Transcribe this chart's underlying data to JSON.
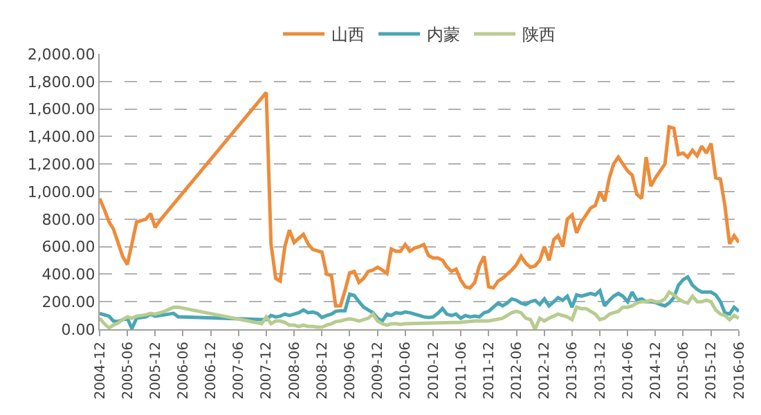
{
  "chart_data": {
    "type": "line",
    "grid": "y",
    "legend": "top",
    "marker": "none",
    "line_style": "solid",
    "xlim": [
      "2004-12",
      "2016-06"
    ],
    "xticks": [
      "2004-12",
      "2005-06",
      "2005-12",
      "2006-06",
      "2006-12",
      "2007-06",
      "2007-12",
      "2008-06",
      "2008-12",
      "2009-06",
      "2009-12",
      "2010-06",
      "2010-12",
      "2011-06",
      "2011-12",
      "2012-06",
      "2012-12",
      "2013-06",
      "2013-12",
      "2014-06",
      "2014-12",
      "2015-06",
      "2015-12",
      "2016-06"
    ],
    "ylim": [
      0,
      2000
    ],
    "yticks": [
      {
        "value": 0,
        "label": "0.00"
      },
      {
        "value": 200,
        "label": "200.00"
      },
      {
        "value": 400,
        "label": "400.00"
      },
      {
        "value": 600,
        "label": "600.00"
      },
      {
        "value": 800,
        "label": "800.00"
      },
      {
        "value": 1000,
        "label": "1,000.00"
      },
      {
        "value": 1200,
        "label": "1,200.00"
      },
      {
        "value": 1400,
        "label": "1,400.00"
      },
      {
        "value": 1600,
        "label": "1,600.00"
      },
      {
        "value": 1800,
        "label": "1,800.00"
      },
      {
        "value": 2000,
        "label": "2,000.00"
      }
    ],
    "series": [
      {
        "name": "山西",
        "color": "#ed8c3b",
        "x": [
          "2004-12",
          "2005-01",
          "2005-02",
          "2005-03",
          "2005-04",
          "2005-05",
          "2005-06",
          "2005-07",
          "2005-08",
          "2005-09",
          "2005-10",
          "2005-11",
          "2005-12",
          "2006-01",
          "2007-12",
          "2008-01",
          "2008-02",
          "2008-03",
          "2008-04",
          "2008-05",
          "2008-06",
          "2008-07",
          "2008-08",
          "2008-09",
          "2008-10",
          "2008-11",
          "2008-12",
          "2009-01",
          "2009-02",
          "2009-03",
          "2009-04",
          "2009-05",
          "2009-06",
          "2009-07",
          "2009-08",
          "2009-09",
          "2009-10",
          "2009-11",
          "2009-12",
          "2010-01",
          "2010-02",
          "2010-03",
          "2010-04",
          "2010-05",
          "2010-06",
          "2010-07",
          "2010-08",
          "2010-09",
          "2010-10",
          "2010-11",
          "2010-12",
          "2011-01",
          "2011-02",
          "2011-03",
          "2011-04",
          "2011-05",
          "2011-06",
          "2011-07",
          "2011-08",
          "2011-09",
          "2011-10",
          "2011-11",
          "2011-12",
          "2012-01",
          "2012-02",
          "2012-03",
          "2012-04",
          "2012-05",
          "2012-06",
          "2012-07",
          "2012-08",
          "2012-09",
          "2012-10",
          "2012-11",
          "2012-12",
          "2013-01",
          "2013-02",
          "2013-03",
          "2013-04",
          "2013-05",
          "2013-06",
          "2013-07",
          "2013-08",
          "2013-09",
          "2013-10",
          "2013-11",
          "2013-12",
          "2014-01",
          "2014-02",
          "2014-03",
          "2014-04",
          "2014-05",
          "2014-06",
          "2014-07",
          "2014-08",
          "2014-09",
          "2014-10",
          "2014-11",
          "2014-12",
          "2015-01",
          "2015-02",
          "2015-03",
          "2015-04",
          "2015-05",
          "2015-06",
          "2015-07",
          "2015-08",
          "2015-09",
          "2015-10",
          "2015-11",
          "2015-12",
          "2016-01",
          "2016-02",
          "2016-03",
          "2016-04",
          "2016-05",
          "2016-06"
        ],
        "values": [
          950,
          870,
          780,
          730,
          630,
          530,
          470,
          620,
          780,
          790,
          800,
          840,
          740,
          790,
          1720,
          620,
          370,
          350,
          600,
          720,
          630,
          660,
          690,
          620,
          580,
          570,
          560,
          400,
          390,
          170,
          170,
          280,
          410,
          420,
          340,
          370,
          420,
          430,
          450,
          430,
          405,
          583,
          567,
          567,
          615,
          567,
          590,
          600,
          615,
          535,
          518,
          518,
          502,
          454,
          421,
          437,
          356,
          308,
          300,
          340,
          460,
          530,
          308,
          300,
          350,
          370,
          400,
          430,
          470,
          530,
          480,
          450,
          460,
          500,
          600,
          500,
          650,
          680,
          600,
          800,
          830,
          700,
          780,
          830,
          880,
          900,
          1000,
          930,
          1100,
          1200,
          1250,
          1200,
          1150,
          1120,
          980,
          950,
          1250,
          1040,
          1100,
          1150,
          1200,
          1470,
          1460,
          1270,
          1280,
          1250,
          1300,
          1260,
          1330,
          1280,
          1350,
          1100,
          1090,
          900,
          620,
          680,
          630
        ]
      },
      {
        "name": "内蒙",
        "color": "#4aa6b5",
        "x": [
          "2004-12",
          "2005-01",
          "2005-02",
          "2005-03",
          "2005-04",
          "2005-05",
          "2005-06",
          "2005-07",
          "2005-08",
          "2005-09",
          "2005-10",
          "2005-11",
          "2005-12",
          "2006-03",
          "2006-04",
          "2006-05",
          "2007-11",
          "2007-12",
          "2008-01",
          "2008-02",
          "2008-03",
          "2008-04",
          "2008-05",
          "2008-06",
          "2008-07",
          "2008-08",
          "2008-09",
          "2008-10",
          "2008-11",
          "2008-12",
          "2009-01",
          "2009-02",
          "2009-03",
          "2009-04",
          "2009-05",
          "2009-06",
          "2009-07",
          "2009-08",
          "2009-09",
          "2009-10",
          "2009-11",
          "2009-12",
          "2010-01",
          "2010-02",
          "2010-03",
          "2010-04",
          "2010-05",
          "2010-06",
          "2010-07",
          "2010-08",
          "2010-09",
          "2010-10",
          "2010-11",
          "2010-12",
          "2011-01",
          "2011-02",
          "2011-03",
          "2011-04",
          "2011-05",
          "2011-06",
          "2011-07",
          "2011-08",
          "2011-09",
          "2011-10",
          "2011-11",
          "2011-12",
          "2012-01",
          "2012-02",
          "2012-03",
          "2012-04",
          "2012-05",
          "2012-06",
          "2012-07",
          "2012-08",
          "2012-09",
          "2012-10",
          "2012-11",
          "2012-12",
          "2013-01",
          "2013-02",
          "2013-03",
          "2013-04",
          "2013-05",
          "2013-06",
          "2013-07",
          "2013-08",
          "2013-09",
          "2013-10",
          "2013-11",
          "2013-12",
          "2014-01",
          "2014-02",
          "2014-03",
          "2014-04",
          "2014-05",
          "2014-06",
          "2014-07",
          "2014-08",
          "2014-09",
          "2014-10",
          "2014-11",
          "2014-12",
          "2015-01",
          "2015-02",
          "2015-03",
          "2015-04",
          "2015-05",
          "2015-06",
          "2015-07",
          "2015-08",
          "2015-09",
          "2015-10",
          "2015-11",
          "2015-12",
          "2016-01",
          "2016-02",
          "2016-03",
          "2016-04",
          "2016-05",
          "2016-06"
        ],
        "values": [
          115,
          105,
          95,
          60,
          55,
          70,
          80,
          5,
          80,
          85,
          90,
          110,
          95,
          110,
          115,
          90,
          70,
          70,
          100,
          90,
          95,
          110,
          100,
          110,
          120,
          140,
          120,
          125,
          115,
          85,
          100,
          110,
          130,
          135,
          135,
          255,
          245,
          200,
          160,
          140,
          120,
          80,
          60,
          110,
          100,
          120,
          115,
          125,
          120,
          110,
          100,
          90,
          85,
          90,
          115,
          150,
          110,
          100,
          110,
          80,
          100,
          90,
          95,
          90,
          120,
          130,
          160,
          190,
          170,
          190,
          220,
          210,
          190,
          180,
          200,
          210,
          180,
          220,
          170,
          200,
          230,
          210,
          240,
          160,
          250,
          240,
          250,
          260,
          250,
          280,
          170,
          210,
          240,
          260,
          240,
          200,
          270,
          210,
          220,
          200,
          200,
          195,
          180,
          170,
          190,
          230,
          320,
          360,
          380,
          320,
          290,
          270,
          270,
          270,
          250,
          200,
          120,
          110,
          160,
          130
        ]
      },
      {
        "name": "陕西",
        "color": "#b8cc8f",
        "x": [
          "2004-12",
          "2005-01",
          "2005-02",
          "2005-03",
          "2005-04",
          "2005-05",
          "2005-06",
          "2005-07",
          "2005-08",
          "2005-09",
          "2005-10",
          "2005-11",
          "2005-12",
          "2006-02",
          "2006-04",
          "2006-05",
          "2007-11",
          "2007-12",
          "2008-01",
          "2008-02",
          "2008-03",
          "2008-04",
          "2008-05",
          "2008-06",
          "2008-07",
          "2008-08",
          "2008-09",
          "2008-10",
          "2008-11",
          "2008-12",
          "2009-01",
          "2009-02",
          "2009-03",
          "2009-04",
          "2009-05",
          "2009-06",
          "2009-07",
          "2009-08",
          "2009-09",
          "2009-10",
          "2009-11",
          "2009-12",
          "2010-01",
          "2010-02",
          "2010-03",
          "2010-04",
          "2010-05",
          "2010-06",
          "2011-06",
          "2011-09",
          "2011-12",
          "2012-03",
          "2012-05",
          "2012-06",
          "2012-07",
          "2012-08",
          "2012-09",
          "2012-10",
          "2012-11",
          "2012-12",
          "2013-01",
          "2013-03",
          "2013-05",
          "2013-06",
          "2013-07",
          "2013-08",
          "2013-09",
          "2013-10",
          "2013-11",
          "2013-12",
          "2014-01",
          "2014-02",
          "2014-03",
          "2014-04",
          "2014-05",
          "2014-06",
          "2014-07",
          "2014-08",
          "2014-09",
          "2014-10",
          "2014-11",
          "2014-12",
          "2015-01",
          "2015-02",
          "2015-03",
          "2015-04",
          "2015-05",
          "2015-06",
          "2015-07",
          "2015-08",
          "2015-09",
          "2015-10",
          "2015-11",
          "2015-12",
          "2016-01",
          "2016-02",
          "2016-03",
          "2016-04",
          "2016-05",
          "2016-06"
        ],
        "values": [
          80,
          40,
          10,
          30,
          45,
          70,
          90,
          80,
          95,
          100,
          105,
          115,
          110,
          130,
          160,
          160,
          40,
          90,
          40,
          60,
          60,
          50,
          30,
          30,
          20,
          30,
          20,
          20,
          15,
          15,
          30,
          40,
          55,
          60,
          70,
          75,
          70,
          60,
          70,
          80,
          110,
          60,
          40,
          30,
          40,
          40,
          35,
          40,
          50,
          60,
          60,
          80,
          120,
          130,
          120,
          80,
          70,
          0,
          80,
          60,
          80,
          110,
          90,
          70,
          160,
          150,
          150,
          130,
          110,
          70,
          80,
          110,
          120,
          130,
          160,
          160,
          170,
          190,
          200,
          200,
          210,
          200,
          200,
          220,
          270,
          250,
          220,
          200,
          190,
          240,
          200,
          200,
          210,
          200,
          140,
          110,
          100,
          70,
          100,
          80
        ]
      }
    ]
  }
}
